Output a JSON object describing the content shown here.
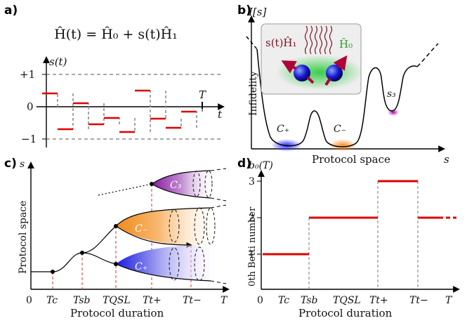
{
  "panels": {
    "a": "a)",
    "b": "b)",
    "c": "c)",
    "d": "d)"
  },
  "panel_a": {
    "hamiltonian": "Ĥ(t) = Ĥ₀ + s(t)Ĥ₁",
    "ylabel": "s(t)",
    "y_ticks": [
      "+1",
      "0",
      "−1"
    ],
    "x_label": "t",
    "marker": "T",
    "protocol_levels": [
      0.42,
      -0.72,
      0.12,
      -0.55,
      -0.35,
      -0.78,
      0.5,
      -0.38,
      -0.65,
      -0.2
    ]
  },
  "panel_b": {
    "ylabel": "I[s]",
    "axis_title": "Infidelity",
    "xlabel": "Protocol space",
    "x_end": "s",
    "h1": "s(t)Ĥ₁",
    "h0": "Ĥ₀",
    "minima": [
      "C₊",
      "C₋",
      "s₃"
    ]
  },
  "panel_c": {
    "ylabel": "Protocol space",
    "yaxis_s": "s",
    "xlabel": "Protocol duration",
    "ticks": [
      "0",
      "Tc",
      "Tsb",
      "TQSL",
      "Tt+",
      "Tt−",
      "T"
    ],
    "branches": [
      "C₃",
      "C₋",
      "C₊"
    ]
  },
  "panel_d": {
    "ylabel": "0th Betti number",
    "ytop": "b₀(T)",
    "xlabel": "Protocol duration",
    "y_ticks": [
      "1",
      "2",
      "3"
    ],
    "x_ticks": [
      "0",
      "Tc",
      "Tsb",
      "TQSL",
      "Tt+",
      "Tt−",
      "T"
    ],
    "chart_data": {
      "type": "line",
      "steps": [
        {
          "from": "0",
          "to": "Tsb",
          "value": 1
        },
        {
          "from": "Tsb",
          "to": "Tt+",
          "value": 2
        },
        {
          "from": "Tt+",
          "to": "Tt−",
          "value": 3
        },
        {
          "from": "Tt−",
          "to": "T",
          "value": 2
        }
      ],
      "ylim": [
        0,
        3
      ]
    }
  }
}
